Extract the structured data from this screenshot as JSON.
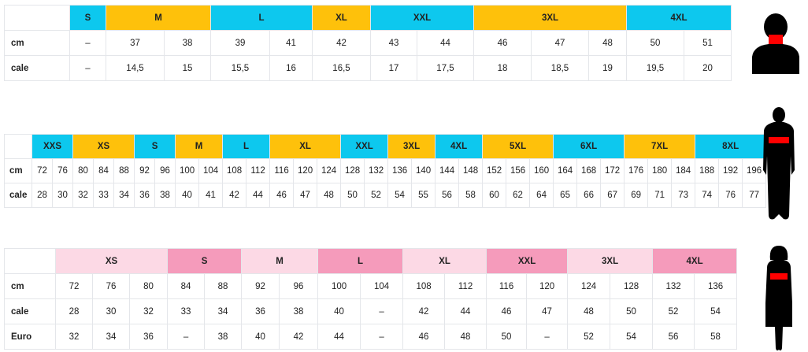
{
  "colors": {
    "blue": "#0dc8ee",
    "yellow": "#fec10b",
    "pink_light": "#fcd9e5",
    "pink_dark": "#f59bbb",
    "measure_band": "#ff0000"
  },
  "tables": [
    {
      "id": "neck",
      "figure": "neck-silhouette-icon",
      "header": [
        {
          "label": "S",
          "span": 1,
          "color": "blue"
        },
        {
          "label": "M",
          "span": 2,
          "color": "yellow"
        },
        {
          "label": "L",
          "span": 2,
          "color": "blue"
        },
        {
          "label": "XL",
          "span": 1,
          "color": "yellow"
        },
        {
          "label": "XXL",
          "span": 2,
          "color": "blue"
        },
        {
          "label": "3XL",
          "span": 3,
          "color": "yellow"
        },
        {
          "label": "4XL",
          "span": 2,
          "color": "blue"
        }
      ],
      "rows": [
        {
          "label": "cm",
          "values": [
            "–",
            "37",
            "38",
            "39",
            "41",
            "42",
            "43",
            "44",
            "46",
            "47",
            "48",
            "50",
            "51"
          ]
        },
        {
          "label": "cale",
          "values": [
            "–",
            "14,5",
            "15",
            "15,5",
            "16",
            "16,5",
            "17",
            "17,5",
            "18",
            "18,5",
            "19",
            "19,5",
            "20"
          ]
        }
      ]
    },
    {
      "id": "chest-men",
      "figure": "male-silhouette-icon",
      "header": [
        {
          "label": "XXS",
          "span": 2,
          "color": "blue"
        },
        {
          "label": "XS",
          "span": 3,
          "color": "yellow"
        },
        {
          "label": "S",
          "span": 2,
          "color": "blue"
        },
        {
          "label": "M",
          "span": 2,
          "color": "yellow"
        },
        {
          "label": "L",
          "span": 2,
          "color": "blue"
        },
        {
          "label": "XL",
          "span": 3,
          "color": "yellow"
        },
        {
          "label": "XXL",
          "span": 2,
          "color": "blue"
        },
        {
          "label": "3XL",
          "span": 2,
          "color": "yellow"
        },
        {
          "label": "4XL",
          "span": 2,
          "color": "blue"
        },
        {
          "label": "5XL",
          "span": 3,
          "color": "yellow"
        },
        {
          "label": "6XL",
          "span": 3,
          "color": "blue"
        },
        {
          "label": "7XL",
          "span": 3,
          "color": "yellow"
        },
        {
          "label": "8XL",
          "span": 3,
          "color": "blue"
        }
      ],
      "rows": [
        {
          "label": "cm",
          "values": [
            "72",
            "76",
            "80",
            "84",
            "88",
            "92",
            "96",
            "100",
            "104",
            "108",
            "112",
            "116",
            "120",
            "124",
            "128",
            "132",
            "136",
            "140",
            "144",
            "148",
            "152",
            "156",
            "160",
            "164",
            "168",
            "172",
            "176",
            "180",
            "184",
            "188",
            "192",
            "196"
          ]
        },
        {
          "label": "cale",
          "values": [
            "28",
            "30",
            "32",
            "33",
            "34",
            "36",
            "38",
            "40",
            "41",
            "42",
            "44",
            "46",
            "47",
            "48",
            "50",
            "52",
            "54",
            "55",
            "56",
            "58",
            "60",
            "62",
            "64",
            "65",
            "66",
            "67",
            "69",
            "71",
            "73",
            "74",
            "76",
            "77"
          ]
        }
      ]
    },
    {
      "id": "chest-women",
      "figure": "female-silhouette-icon",
      "header": [
        {
          "label": "XS",
          "span": 3,
          "color": "pink_light"
        },
        {
          "label": "S",
          "span": 2,
          "color": "pink_dark"
        },
        {
          "label": "M",
          "span": 2,
          "color": "pink_light"
        },
        {
          "label": "L",
          "span": 2,
          "color": "pink_dark"
        },
        {
          "label": "XL",
          "span": 2,
          "color": "pink_light"
        },
        {
          "label": "XXL",
          "span": 2,
          "color": "pink_dark"
        },
        {
          "label": "3XL",
          "span": 2,
          "color": "pink_light"
        },
        {
          "label": "4XL",
          "span": 2,
          "color": "pink_dark"
        }
      ],
      "rows": [
        {
          "label": "cm",
          "values": [
            "72",
            "76",
            "80",
            "84",
            "88",
            "92",
            "96",
            "100",
            "104",
            "108",
            "112",
            "116",
            "120",
            "124",
            "128",
            "132",
            "136"
          ]
        },
        {
          "label": "cale",
          "values": [
            "28",
            "30",
            "32",
            "33",
            "34",
            "36",
            "38",
            "40",
            "–",
            "42",
            "44",
            "46",
            "47",
            "48",
            "50",
            "52",
            "54"
          ]
        },
        {
          "label": "Euro",
          "values": [
            "32",
            "34",
            "36",
            "–",
            "38",
            "40",
            "42",
            "44",
            "–",
            "46",
            "48",
            "50",
            "–",
            "52",
            "54",
            "56",
            "58"
          ]
        }
      ]
    }
  ]
}
